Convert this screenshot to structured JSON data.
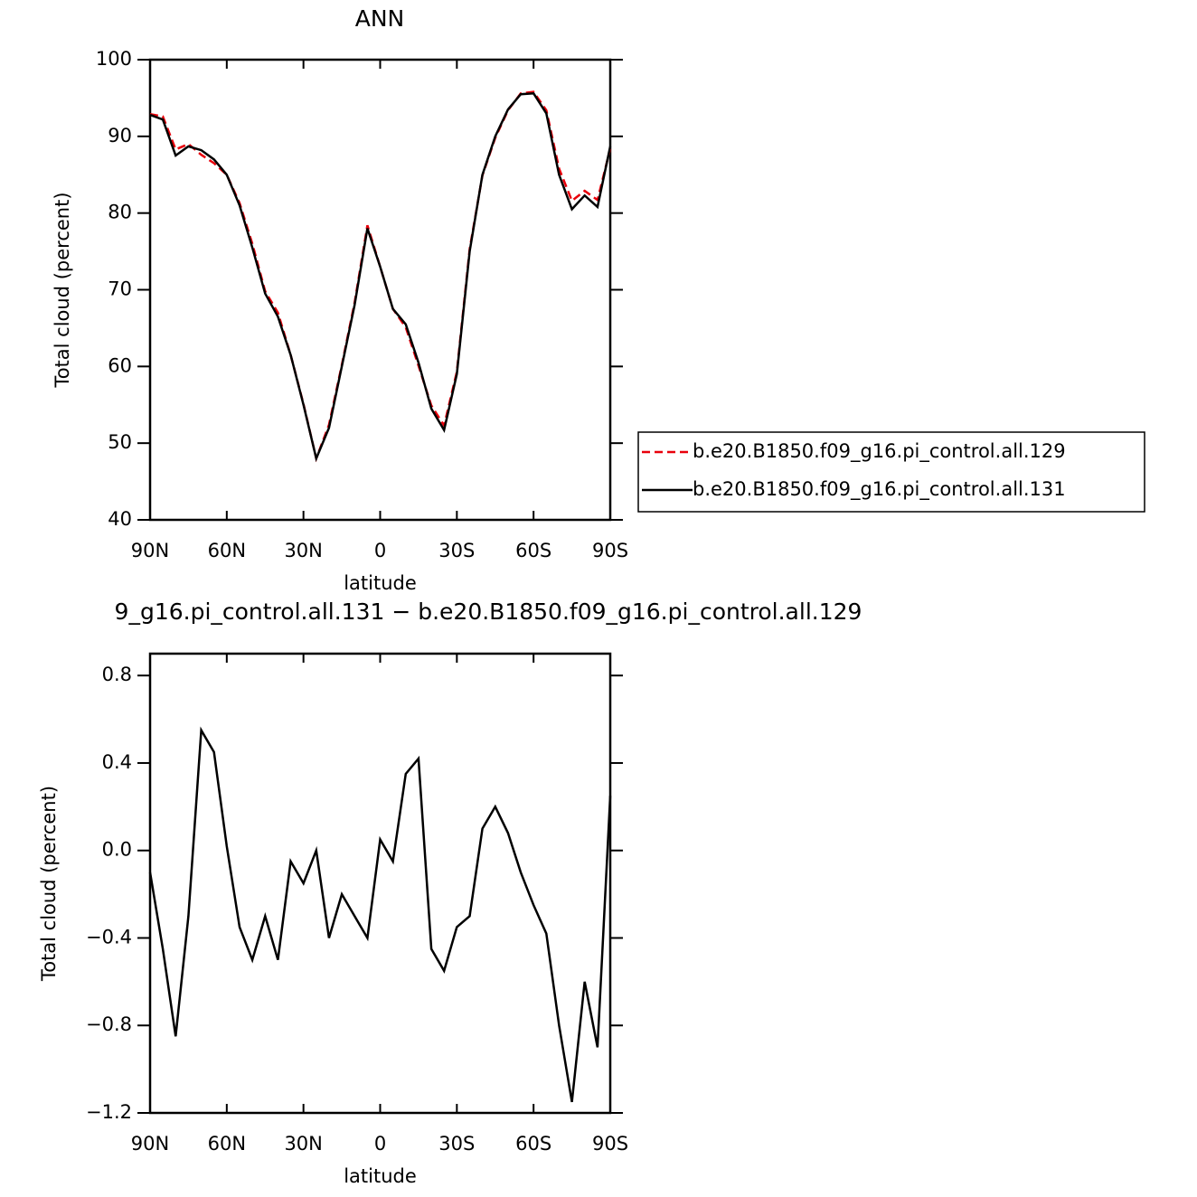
{
  "chart_data": [
    {
      "type": "line",
      "title": "ANN",
      "xlabel": "latitude",
      "ylabel": "Total cloud (percent)",
      "x": [
        90,
        85,
        80,
        75,
        70,
        65,
        60,
        55,
        50,
        45,
        40,
        35,
        30,
        25,
        20,
        15,
        10,
        5,
        0,
        -5,
        -10,
        -15,
        -20,
        -25,
        -30,
        -35,
        -40,
        -45,
        -50,
        -55,
        -60,
        -65,
        -70,
        -75,
        -80,
        -85,
        -90
      ],
      "series": [
        {
          "name": "b.e20.B1850.f09_g16.pi_control.all.129",
          "color": "#e8000b",
          "linestyle": "dashed",
          "values": [
            92.9,
            92.6,
            88.3,
            89.0,
            87.6,
            86.5,
            85.0,
            81.3,
            76.0,
            69.8,
            67.0,
            61.5,
            55.1,
            48.0,
            52.4,
            60.2,
            68.3,
            78.4,
            73.0,
            67.5,
            65.1,
            60.1,
            54.9,
            52.3,
            59.3,
            75.3,
            84.9,
            89.8,
            93.4,
            95.6,
            95.8,
            93.4,
            85.8,
            81.6,
            82.9,
            81.7,
            88.4
          ]
        },
        {
          "name": "b.e20.B1850.f09_g16.pi_control.all.131",
          "color": "#000000",
          "linestyle": "solid",
          "values": [
            92.8,
            92.2,
            87.5,
            88.7,
            88.2,
            87.0,
            85.0,
            81.0,
            75.5,
            69.5,
            66.5,
            61.5,
            55.0,
            48.0,
            52.0,
            60.0,
            68.0,
            78.0,
            73.0,
            67.5,
            65.5,
            60.5,
            54.5,
            51.7,
            59.0,
            75.0,
            85.0,
            90.0,
            93.5,
            95.5,
            95.6,
            93.0,
            85.0,
            80.5,
            82.3,
            80.8,
            88.7
          ]
        }
      ],
      "xlim": [
        90,
        -90
      ],
      "xticks": [
        {
          "value": 90,
          "label": "90N"
        },
        {
          "value": 60,
          "label": "60N"
        },
        {
          "value": 30,
          "label": "30N"
        },
        0,
        {
          "value": -30,
          "label": "30S"
        },
        {
          "value": -60,
          "label": "60S"
        },
        {
          "value": -90,
          "label": "90S"
        }
      ],
      "ylim": [
        40,
        100
      ],
      "yticks": [
        40,
        50,
        60,
        70,
        80,
        90,
        100
      ],
      "legend": "right"
    },
    {
      "type": "line",
      "title": "9_g16.pi_control.all.131 − b.e20.B1850.f09_g16.pi_control.all.129",
      "xlabel": "latitude",
      "ylabel": "Total cloud (percent)",
      "x": [
        90,
        85,
        80,
        75,
        70,
        65,
        60,
        55,
        50,
        45,
        40,
        35,
        30,
        25,
        20,
        15,
        10,
        5,
        0,
        -5,
        -10,
        -15,
        -20,
        -25,
        -30,
        -35,
        -40,
        -45,
        -50,
        -55,
        -60,
        -65,
        -70,
        -75,
        -80,
        -85,
        -90
      ],
      "series": [
        {
          "color": "#000000",
          "linestyle": "solid",
          "values": [
            -0.1,
            -0.45,
            -0.85,
            -0.3,
            0.55,
            0.45,
            0.02,
            -0.35,
            -0.5,
            -0.3,
            -0.5,
            -0.05,
            -0.15,
            0.0,
            -0.4,
            -0.2,
            -0.3,
            -0.4,
            0.05,
            -0.05,
            0.35,
            0.42,
            -0.45,
            -0.55,
            -0.35,
            -0.3,
            0.1,
            0.2,
            0.08,
            -0.1,
            -0.25,
            -0.38,
            -0.8,
            -1.15,
            -0.6,
            -0.9,
            0.25
          ]
        }
      ],
      "xlim": [
        90,
        -90
      ],
      "xticks": [
        {
          "value": 90,
          "label": "90N"
        },
        {
          "value": 60,
          "label": "60N"
        },
        {
          "value": 30,
          "label": "30N"
        },
        0,
        {
          "value": -30,
          "label": "30S"
        },
        {
          "value": -60,
          "label": "60S"
        },
        {
          "value": -90,
          "label": "90S"
        }
      ],
      "ylim": [
        -1.2,
        0.9
      ],
      "yticks": [
        {
          "value": -1.2,
          "label": "−1.2"
        },
        {
          "value": -0.8,
          "label": "−0.8"
        },
        {
          "value": -0.4,
          "label": "−0.4"
        },
        {
          "value": 0,
          "label": "0.0"
        },
        0.4,
        0.8
      ]
    }
  ]
}
